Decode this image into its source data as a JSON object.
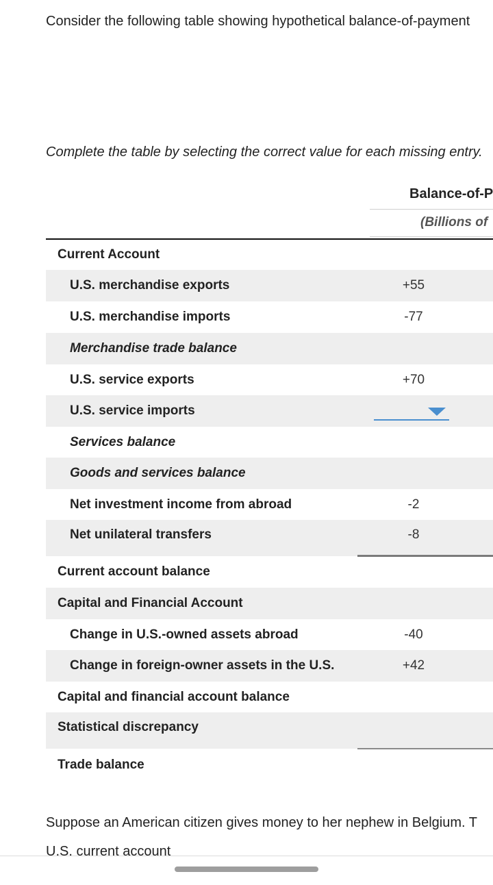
{
  "intro_text": "Consider the following table showing hypothetical balance-of-payment",
  "instruction_text": "Complete the table by selecting the correct value for each missing entry.",
  "table": {
    "header_title": "Balance-of-P",
    "header_subtitle": "(Billions of",
    "rows": [
      {
        "label": "Current Account",
        "value": ""
      },
      {
        "label": "U.S. merchandise exports",
        "value": "+55"
      },
      {
        "label": "U.S. merchandise imports",
        "value": "-77"
      },
      {
        "label": "Merchandise trade balance",
        "value": ""
      },
      {
        "label": "U.S. service exports",
        "value": "+70"
      },
      {
        "label": "U.S. service imports",
        "value": ""
      },
      {
        "label": "Services balance",
        "value": ""
      },
      {
        "label": "Goods and services balance",
        "value": ""
      },
      {
        "label": "Net investment income from abroad",
        "value": "-2"
      },
      {
        "label": "Net unilateral transfers",
        "value": "-8"
      },
      {
        "label": "Current account balance",
        "value": ""
      },
      {
        "label": "Capital and Financial Account",
        "value": ""
      },
      {
        "label": "Change in U.S.-owned assets abroad",
        "value": "-40"
      },
      {
        "label": "Change in foreign-owner assets in the U.S.",
        "value": "+42"
      },
      {
        "label": "Capital and financial account balance",
        "value": ""
      },
      {
        "label": "Statistical discrepancy",
        "value": ""
      },
      {
        "label": "Trade balance",
        "value": ""
      }
    ]
  },
  "dropdown_icon": "chevron-down-icon",
  "colors": {
    "accent": "#4a8fcf",
    "row_shade": "#eeeeee"
  },
  "outro_text_1": "Suppose an American citizen gives money to her nephew in Belgium. T",
  "outro_text_2": "U.S. current account"
}
